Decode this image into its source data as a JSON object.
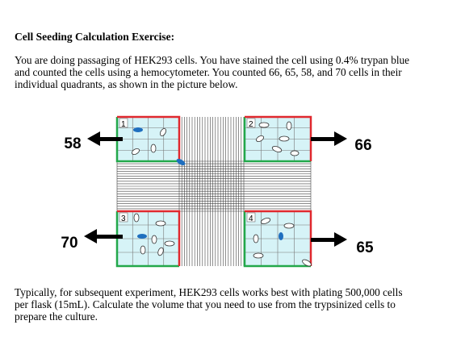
{
  "document": {
    "title": "Cell Seeding Calculation Exercise:",
    "paragraphs": [
      [
        "You are doing passaging of HEK293 cells. You have stained the cell using 0.4% trypan blue",
        "and counted the cells using a hemocytometer. You counted 66, 65, 58, and 70 cells in their",
        "individual quadrants, as shown in the picture below."
      ],
      [
        "Typically, for subsequent experiment, HEK293 cells works best with plating 500,000 cells",
        "per flask (15mL). Calculate the volume that you need to use from the trypsinized cells to",
        "prepare the culture."
      ]
    ],
    "figure": {
      "quadrants": [
        {
          "number": 1,
          "count": 58
        },
        {
          "number": 2,
          "count": 66
        },
        {
          "number": 3,
          "count": 70
        },
        {
          "number": 4,
          "count": 65
        }
      ]
    }
  }
}
